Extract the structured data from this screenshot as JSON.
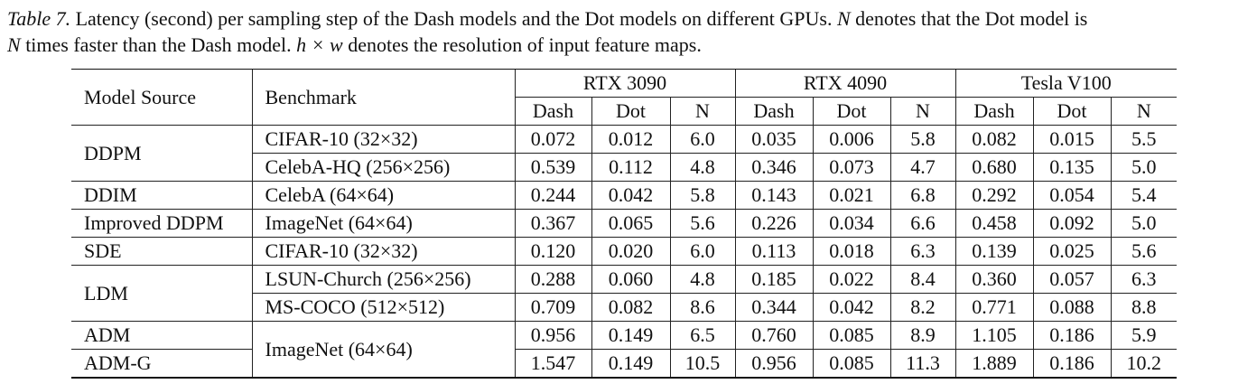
{
  "caption": {
    "label": "Table 7.",
    "text_1": " Latency (second) per sampling step of the Dash models and the Dot models on different GPUs. ",
    "var_n": "N",
    "text_2": " denotes that the Dot model is ",
    "var_n2": "N",
    "text_3": " times faster than the Dash model. ",
    "var_hw": "h × w",
    "text_4": " denotes the resolution of input feature maps."
  },
  "table": {
    "col_model_source": "Model Source",
    "col_benchmark": "Benchmark",
    "gpus": [
      "RTX 3090",
      "RTX 4090",
      "Tesla V100"
    ],
    "sub_headers": [
      "Dash",
      "Dot",
      "N",
      "Dash",
      "Dot",
      "N",
      "Dash",
      "Dot",
      "N"
    ],
    "groups": [
      {
        "source": "DDPM",
        "rows": [
          {
            "benchmark": "CIFAR-10 (32×32)",
            "values": [
              "0.072",
              "0.012",
              "6.0",
              "0.035",
              "0.006",
              "5.8",
              "0.082",
              "0.015",
              "5.5"
            ]
          },
          {
            "benchmark": "CelebA-HQ (256×256)",
            "values": [
              "0.539",
              "0.112",
              "4.8",
              "0.346",
              "0.073",
              "4.7",
              "0.680",
              "0.135",
              "5.0"
            ]
          }
        ]
      },
      {
        "source": "DDIM",
        "rows": [
          {
            "benchmark": "CelebA (64×64)",
            "values": [
              "0.244",
              "0.042",
              "5.8",
              "0.143",
              "0.021",
              "6.8",
              "0.292",
              "0.054",
              "5.4"
            ]
          }
        ]
      },
      {
        "source": "Improved DDPM",
        "rows": [
          {
            "benchmark": "ImageNet (64×64)",
            "values": [
              "0.367",
              "0.065",
              "5.6",
              "0.226",
              "0.034",
              "6.6",
              "0.458",
              "0.092",
              "5.0"
            ]
          }
        ]
      },
      {
        "source": "SDE",
        "rows": [
          {
            "benchmark": "CIFAR-10 (32×32)",
            "values": [
              "0.120",
              "0.020",
              "6.0",
              "0.113",
              "0.018",
              "6.3",
              "0.139",
              "0.025",
              "5.6"
            ]
          }
        ]
      },
      {
        "source": "LDM",
        "rows": [
          {
            "benchmark": "LSUN-Church (256×256)",
            "values": [
              "0.288",
              "0.060",
              "4.8",
              "0.185",
              "0.022",
              "8.4",
              "0.360",
              "0.057",
              "6.3"
            ]
          },
          {
            "benchmark": "MS-COCO (512×512)",
            "values": [
              "0.709",
              "0.082",
              "8.6",
              "0.344",
              "0.042",
              "8.2",
              "0.771",
              "0.088",
              "8.8"
            ]
          }
        ]
      }
    ],
    "adm_block": {
      "benchmark": "ImageNet (64×64)",
      "rows": [
        {
          "source": "ADM",
          "values": [
            "0.956",
            "0.149",
            "6.5",
            "0.760",
            "0.085",
            "8.9",
            "1.105",
            "0.186",
            "5.9"
          ]
        },
        {
          "source": "ADM-G",
          "values": [
            "1.547",
            "0.149",
            "10.5",
            "0.956",
            "0.085",
            "11.3",
            "1.889",
            "0.186",
            "10.2"
          ]
        }
      ]
    }
  }
}
